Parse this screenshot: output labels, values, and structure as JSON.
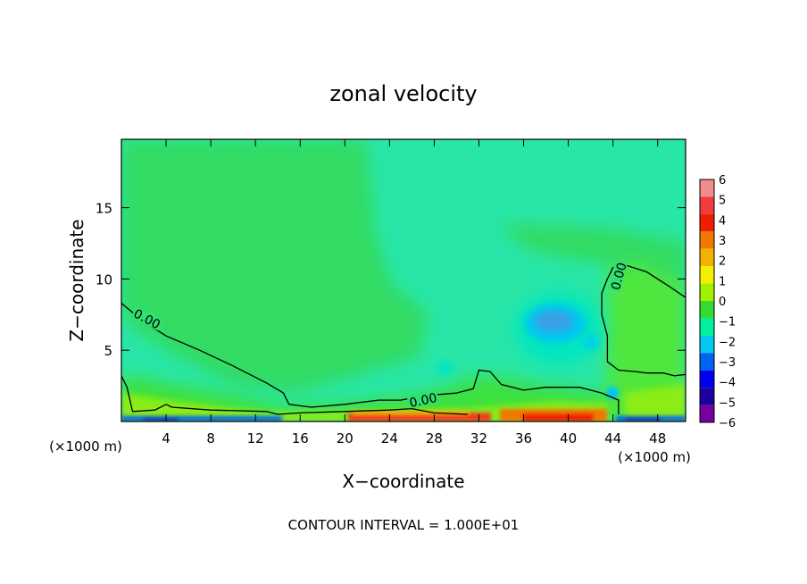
{
  "chart_data": {
    "type": "heatmap",
    "title": "zonal velocity",
    "xlabel": "X−coordinate",
    "ylabel": "Z−coordinate",
    "x_unit_left": "(×1000 m)",
    "x_unit_right": "(×1000 m)",
    "footer": "CONTOUR INTERVAL = 1.000E+01",
    "xlim": [
      0,
      50.5
    ],
    "ylim": [
      0,
      19.8
    ],
    "x_ticks": [
      "4",
      "8",
      "12",
      "16",
      "20",
      "24",
      "28",
      "32",
      "36",
      "40",
      "44",
      "48"
    ],
    "x_tick_values": [
      4,
      8,
      12,
      16,
      20,
      24,
      28,
      32,
      36,
      40,
      44,
      48
    ],
    "y_ticks": [
      "5",
      "10",
      "15"
    ],
    "y_tick_values": [
      5,
      10,
      15
    ],
    "colorbar": {
      "labels": [
        "6",
        "5",
        "4",
        "3",
        "2",
        "1",
        "0",
        "−1",
        "−2",
        "−3",
        "−4",
        "−5",
        "−6"
      ],
      "levels": [
        6,
        5,
        4,
        3,
        2,
        1,
        0,
        -1,
        -2,
        -3,
        -4,
        -5,
        -6
      ],
      "colors": [
        "#f08c8c",
        "#f03c3c",
        "#f01e00",
        "#f07800",
        "#f0b400",
        "#f0f000",
        "#a0f000",
        "#32dc32",
        "#00f0a0",
        "#00c8f0",
        "#0064f0",
        "#0000f0",
        "#1e00a0",
        "#7800a0"
      ]
    },
    "background_color": "#28e6a8",
    "contour_labels": [
      "0.00",
      "0.00",
      "0.00"
    ],
    "zero_contours": [
      {
        "name": "left-zero-contour",
        "points": [
          [
            0,
            8.3
          ],
          [
            2,
            7
          ],
          [
            4,
            6
          ],
          [
            7,
            5
          ],
          [
            10,
            3.9
          ],
          [
            13,
            2.7
          ],
          [
            14.5,
            2
          ],
          [
            15,
            1.2
          ],
          [
            17,
            1
          ],
          [
            20,
            1.2
          ],
          [
            23,
            1.5
          ],
          [
            25,
            1.5
          ],
          [
            27,
            1.8
          ],
          [
            30,
            2
          ],
          [
            31.5,
            2.3
          ],
          [
            32,
            3.6
          ],
          [
            33,
            3.5
          ],
          [
            34,
            2.6
          ],
          [
            36,
            2.2
          ],
          [
            38,
            2.4
          ],
          [
            41,
            2.4
          ],
          [
            43,
            2
          ],
          [
            44.5,
            1.5
          ],
          [
            44.5,
            0.5
          ]
        ]
      },
      {
        "name": "lower-zero-contour",
        "points": [
          [
            0,
            3.2
          ],
          [
            0.5,
            2.4
          ],
          [
            1,
            0.7
          ],
          [
            3,
            0.8
          ],
          [
            4,
            1.2
          ],
          [
            4.5,
            1
          ],
          [
            8,
            0.8
          ],
          [
            13,
            0.7
          ],
          [
            14,
            0.5
          ],
          [
            16,
            0.6
          ],
          [
            20,
            0.7
          ],
          [
            24,
            0.8
          ],
          [
            26,
            0.9
          ],
          [
            28,
            0.6
          ],
          [
            31,
            0.5
          ]
        ]
      },
      {
        "name": "right-zero-contour",
        "points": [
          [
            50.5,
            8.7
          ],
          [
            49,
            9.5
          ],
          [
            47,
            10.5
          ],
          [
            45,
            11
          ],
          [
            44,
            10.8
          ],
          [
            43.5,
            10
          ],
          [
            43,
            9
          ],
          [
            43,
            7.5
          ],
          [
            43.5,
            6
          ],
          [
            43.5,
            4.2
          ],
          [
            44.5,
            3.6
          ],
          [
            46,
            3.5
          ],
          [
            47,
            3.4
          ],
          [
            48.5,
            3.4
          ],
          [
            49.5,
            3.2
          ],
          [
            50.5,
            3.3
          ]
        ]
      }
    ],
    "features": [
      {
        "name": "negative-core",
        "x": 38.5,
        "z": 7.2,
        "value": -3
      },
      {
        "name": "negative-halo",
        "x": 38.5,
        "z": 7,
        "value": -2
      },
      {
        "name": "surface-positive-jet",
        "x": 31,
        "z": 0.3,
        "value": 4
      },
      {
        "name": "surface-negative-left",
        "x": 4,
        "z": 0.2,
        "value": -5
      },
      {
        "name": "surface-negative-right",
        "x": 47,
        "z": 0.2,
        "value": -5
      }
    ]
  }
}
